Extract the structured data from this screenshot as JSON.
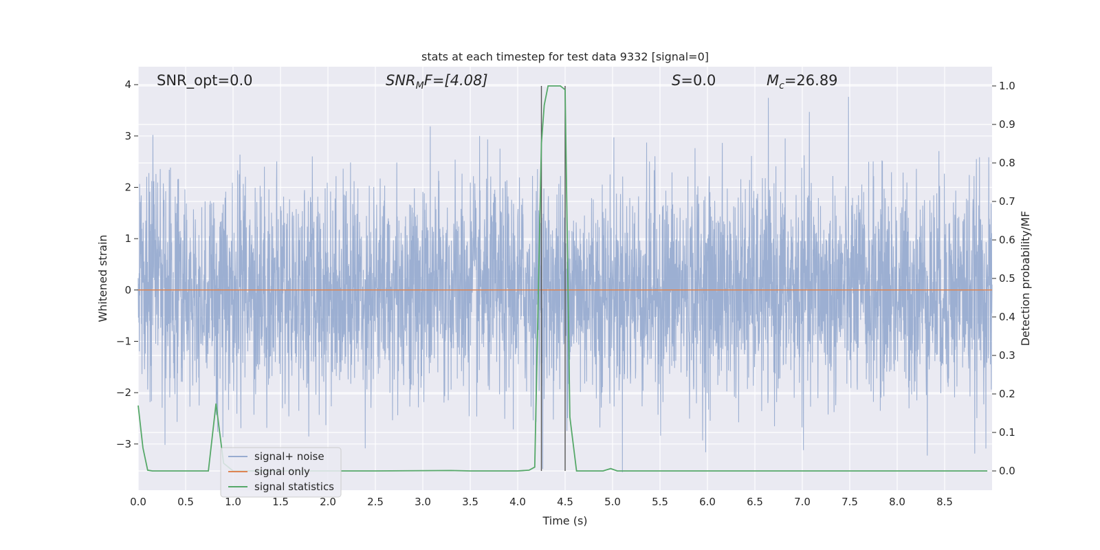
{
  "chart_data": {
    "type": "line",
    "title": "stats at each timestep for test data 9332 [signal=0]",
    "xlabel": "Time (s)",
    "ylabel_left": "Whitened strain",
    "ylabel_right": "Detection probability/MF",
    "xlim": [
      0.0,
      9.0
    ],
    "ylim_left": [
      -3.9,
      4.35
    ],
    "ylim_right": [
      -0.05,
      1.05
    ],
    "xticks": [
      "0.0",
      "0.5",
      "1.0",
      "1.5",
      "2.0",
      "2.5",
      "3.0",
      "3.5",
      "4.0",
      "4.5",
      "5.0",
      "5.5",
      "6.0",
      "6.5",
      "7.0",
      "7.5",
      "8.0",
      "8.5"
    ],
    "yticks_left": [
      "4",
      "3",
      "2",
      "1",
      "0",
      "−1",
      "−2",
      "−3"
    ],
    "yticks_right": [
      "1.0",
      "0.9",
      "0.8",
      "0.7",
      "0.6",
      "0.5",
      "0.4",
      "0.3",
      "0.2",
      "0.1",
      "0.0"
    ],
    "grid": true,
    "legend_position": "bottom-left",
    "annotations": {
      "snr_opt": "SNR_opt=0.0",
      "snr_mf_main": "SNR",
      "snr_mf_sub": "M",
      "snr_mf_rest": "F=[4.08]",
      "s_main": "S",
      "s_rest": "=0.0",
      "mc_main": "M",
      "mc_sub": "c",
      "mc_rest": "=26.89"
    },
    "vertical_lines_x": [
      4.25,
      4.5
    ],
    "series": [
      {
        "name": "signal+ noise",
        "color": "#98acd0",
        "axis": "left",
        "description_stats": {
          "mean": 0.0,
          "std": 1.0,
          "max": 4.0,
          "min": -3.55
        }
      },
      {
        "name": "signal only",
        "color": "#dd8452",
        "axis": "left",
        "x": [
          0.0,
          9.0
        ],
        "y": [
          0.0,
          0.0
        ]
      },
      {
        "name": "signal statistics",
        "color": "#55a868",
        "axis": "right",
        "x": [
          0.0,
          0.05,
          0.1,
          0.15,
          0.5,
          0.74,
          0.82,
          0.9,
          1.0,
          2.5,
          3.3,
          3.5,
          4.0,
          4.12,
          4.18,
          4.25,
          4.28,
          4.32,
          4.45,
          4.5,
          4.55,
          4.62,
          4.9,
          4.98,
          5.05,
          5.5,
          7.0,
          8.5,
          8.95
        ],
        "y": [
          0.17,
          0.06,
          0.002,
          0.0,
          0.0,
          0.0,
          0.175,
          0.02,
          0.0,
          0.0,
          0.001,
          0.0,
          0.0,
          0.002,
          0.01,
          0.85,
          0.95,
          1.0,
          1.0,
          0.99,
          0.14,
          0.0,
          0.0,
          0.006,
          0.0,
          0.0,
          0.0,
          0.0,
          0.0
        ]
      }
    ]
  }
}
